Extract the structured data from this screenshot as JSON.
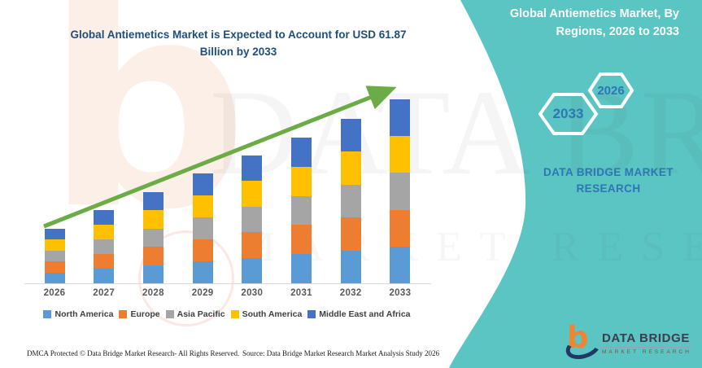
{
  "colors": {
    "teal": "#5AC5C2",
    "title_navy": "#1F4E79",
    "accent_blue": "#2E75B6",
    "arrow_green": "#6BAC46",
    "axis_label_gray": "#595959",
    "logo_orange": "#EF8532",
    "logo_navy": "#1F3864"
  },
  "left_panel": {
    "title_line1": "Global Antiemetics Market is Expected to Account for USD 61.87",
    "title_line2": "Billion by 2033",
    "footer_dmca": "DMCA Protected © Data Bridge Market Research-  All Rights Reserved.",
    "footer_source": "Source: Data Bridge Market Research  Market Analysis Study 2026"
  },
  "watermarks": {
    "blob_letter": "b",
    "line1": "DATA BRIDGE",
    "line2": "MARKET RESEARCH"
  },
  "right_panel": {
    "heading_line1": "Global Antiemetics Market, By",
    "heading_line2": "Regions, 2026 to 2033",
    "hexagons": [
      {
        "label": "2026"
      },
      {
        "label": "2033"
      }
    ],
    "brand_line1": "DATA BRIDGE MARKET",
    "brand_line2": "RESEARCH",
    "logo": {
      "name": "DATA BRIDGE",
      "subtitle": "MARKET RESEARCH"
    }
  },
  "chart_data": {
    "type": "bar",
    "stacked": true,
    "title": "Global Antiemetics Market is Expected to Account for USD 61.87 Billion by 2033",
    "xlabel": "",
    "ylabel": "",
    "y_axis_visible": false,
    "grid": false,
    "legend_position": "bottom",
    "trend_arrow": true,
    "categories": [
      "2026",
      "2027",
      "2028",
      "2029",
      "2030",
      "2031",
      "2032",
      "2033"
    ],
    "totals_usd_billion": [
      18.3,
      24.6,
      30.7,
      37.0,
      43.0,
      49.0,
      55.3,
      61.87
    ],
    "ylim": [
      0,
      62
    ],
    "series": [
      {
        "name": "North America",
        "color": "#5B9BD5",
        "values": [
          3.66,
          4.92,
          6.14,
          7.4,
          8.6,
          9.8,
          11.06,
          12.37
        ]
      },
      {
        "name": "Europe",
        "color": "#ED7D31",
        "values": [
          3.66,
          4.92,
          6.14,
          7.4,
          8.6,
          9.8,
          11.06,
          12.37
        ]
      },
      {
        "name": "Asia Pacific",
        "color": "#A5A5A5",
        "values": [
          3.66,
          4.92,
          6.14,
          7.4,
          8.6,
          9.8,
          11.06,
          12.37
        ]
      },
      {
        "name": "South America",
        "color": "#FFC000",
        "values": [
          3.66,
          4.92,
          6.14,
          7.4,
          8.6,
          9.8,
          11.06,
          12.37
        ]
      },
      {
        "name": "Middle East and Africa",
        "color": "#4472C4",
        "values": [
          3.66,
          4.92,
          6.14,
          7.4,
          8.6,
          9.8,
          11.06,
          12.37
        ]
      }
    ]
  }
}
